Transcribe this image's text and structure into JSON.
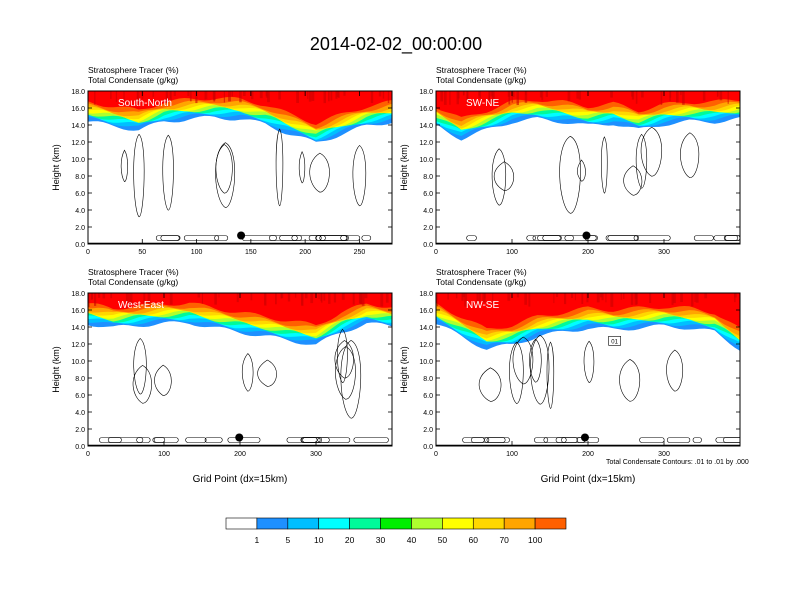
{
  "title": "2014-02-02_00:00:00",
  "footnote": "Total Condensate Contours: .01 to .01 by .000",
  "colorbar": {
    "labels": [
      "1",
      "5",
      "10",
      "20",
      "30",
      "40",
      "50",
      "60",
      "70",
      "100"
    ],
    "colors": [
      "#ffffff",
      "#1e90ff",
      "#00bfff",
      "#00ffff",
      "#00fa9a",
      "#00ee00",
      "#adff2f",
      "#ffff00",
      "#ffd700",
      "#ffa500",
      "#ff6000",
      "#ff0000"
    ]
  },
  "chart_data": [
    {
      "type": "contour",
      "subtitle_1": "Stratosphere Tracer   (%)",
      "subtitle_2": "Total Condensate   (g/kg)",
      "panel_label": "South-North",
      "xlabel": "",
      "ylabel": "Height (km)",
      "xlim": [
        0,
        280
      ],
      "ylim": [
        0,
        18
      ],
      "xticks": [
        0,
        50,
        100,
        150,
        200,
        250
      ],
      "yticks": [
        0.0,
        2.0,
        4.0,
        6.0,
        8.0,
        10.0,
        12.0,
        14.0,
        16.0,
        18.0
      ],
      "tropopause_km": [
        15.5,
        15.0,
        14.5,
        15.5,
        15.8,
        16.0,
        15.8,
        15.2,
        14.0,
        13.0,
        14.0,
        15.0,
        15.5
      ],
      "marker": {
        "x": 141,
        "y": 1.0
      }
    },
    {
      "type": "contour",
      "subtitle_1": "Stratosphere Tracer   (%)",
      "subtitle_2": "Total Condensate   (g/kg)",
      "panel_label": "SW-NE",
      "xlabel": "",
      "ylabel": "Height (km)",
      "xlim": [
        0,
        400
      ],
      "ylim": [
        0,
        18
      ],
      "xticks": [
        0,
        100,
        200,
        300
      ],
      "yticks": [
        0.0,
        2.0,
        4.0,
        6.0,
        8.0,
        10.0,
        12.0,
        14.0,
        16.0,
        18.0
      ],
      "tropopause_km": [
        15.0,
        13.5,
        14.5,
        15.5,
        15.8,
        15.5,
        15.0,
        15.3,
        14.5,
        15.2,
        15.5,
        15.5,
        15.8
      ],
      "marker": {
        "x": 198,
        "y": 1.0
      }
    },
    {
      "type": "contour",
      "subtitle_1": "Stratosphere Tracer   (%)",
      "subtitle_2": "Total Condensate   (g/kg)",
      "panel_label": "West-East",
      "xlabel": "Grid Point (dx=15km)",
      "ylabel": "Height (km)",
      "xlim": [
        0,
        400
      ],
      "ylim": [
        0,
        18
      ],
      "xticks": [
        0,
        100,
        200,
        300
      ],
      "yticks": [
        0.0,
        2.0,
        4.0,
        6.0,
        8.0,
        10.0,
        12.0,
        14.0,
        16.0,
        18.0
      ],
      "tropopause_km": [
        15.5,
        15.0,
        15.3,
        15.5,
        15.6,
        15.0,
        14.5,
        14.0,
        13.5,
        13.0,
        14.5,
        15.5,
        15.2
      ],
      "marker": {
        "x": 199,
        "y": 1.0
      }
    },
    {
      "type": "contour",
      "subtitle_1": "Stratosphere Tracer   (%)",
      "subtitle_2": "Total Condensate   (g/kg)",
      "panel_label": "NW-SE",
      "xlabel": "Grid Point (dx=15km)",
      "ylabel": "Height (km)",
      "xlim": [
        0,
        400
      ],
      "ylim": [
        0,
        18
      ],
      "xticks": [
        0,
        100,
        200,
        300
      ],
      "yticks": [
        0.0,
        2.0,
        4.0,
        6.0,
        8.0,
        10.0,
        12.0,
        14.0,
        16.0,
        18.0
      ],
      "tropopause_km": [
        15.5,
        14.0,
        12.5,
        13.0,
        14.0,
        14.5,
        15.0,
        14.8,
        15.0,
        15.2,
        15.0,
        14.5,
        12.5
      ],
      "marker": {
        "x": 196,
        "y": 1.0
      },
      "contour_label": "01"
    }
  ]
}
